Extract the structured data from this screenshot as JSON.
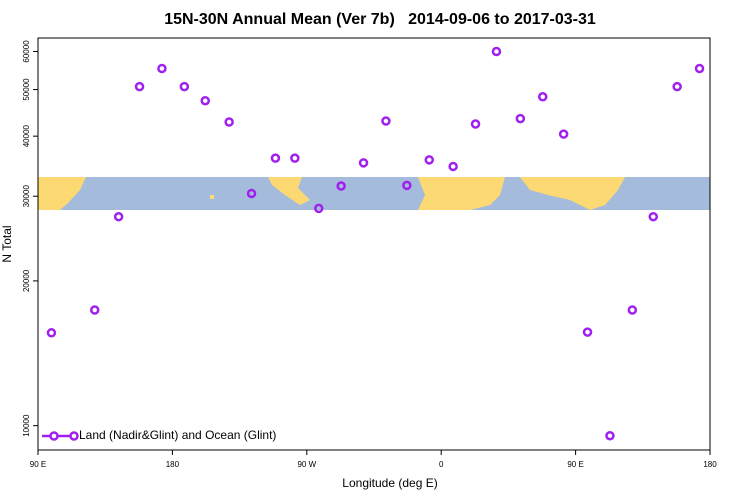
{
  "chart_data": {
    "type": "scatter",
    "title": "15N-30N Annual Mean (Ver 7b)   2014-09-06 to 2017-03-31",
    "xlabel": "Longitude (deg E)",
    "ylabel": "N Total",
    "series": [
      {
        "name": "Land (Nadir&Glint) and Ocean (Glint)",
        "color": "#a020f0",
        "x": [
          99,
          128,
          144,
          158,
          173,
          188,
          202,
          218,
          233,
          249,
          262,
          278,
          293,
          308,
          323,
          337,
          352,
          368,
          383,
          397,
          413,
          428,
          442,
          458,
          473,
          488,
          502,
          518,
          533
        ],
        "values": [
          15600,
          17400,
          27200,
          50700,
          55300,
          50700,
          47400,
          42800,
          30400,
          36000,
          36000,
          28300,
          31500,
          35200,
          43000,
          31600,
          35700,
          34600,
          42400,
          60000,
          43500,
          48300,
          40400,
          15650,
          9530,
          17400,
          27200,
          50700,
          55300
        ]
      }
    ],
    "xlim": [
      90,
      540
    ],
    "ylim": [
      8900,
      64000
    ],
    "xticks": [
      {
        "value": 90,
        "label": "90 E"
      },
      180,
      {
        "value": 270,
        "label": "90 W"
      },
      {
        "value": 360,
        "label": "0"
      },
      {
        "value": 450,
        "label": "90 E"
      },
      {
        "value": 540,
        "label": "180"
      }
    ],
    "yticks": [
      10000,
      20000,
      30000,
      40000,
      50000,
      60000
    ],
    "log_y": true,
    "legend": "bottom-left"
  }
}
